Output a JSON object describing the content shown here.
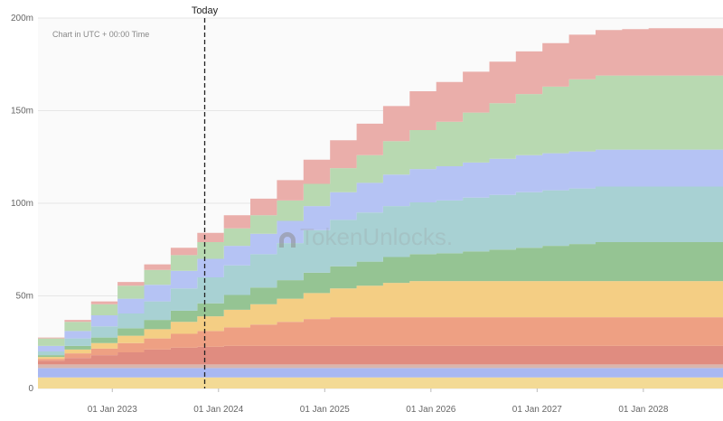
{
  "chart_data": {
    "type": "area",
    "stacked": true,
    "step": true,
    "annotation": "Chart in UTC + 00:00 Time",
    "watermark": "TokenUnlocks.",
    "today_label": "Today",
    "today_x": 2023.87,
    "xlim": [
      2022.3,
      2028.75
    ],
    "ylim": [
      0,
      200
    ],
    "x_ticks": [
      {
        "label": "01 Jan 2023",
        "value": 2023.0
      },
      {
        "label": "01 Jan 2024",
        "value": 2024.0
      },
      {
        "label": "01 Jan 2025",
        "value": 2025.0
      },
      {
        "label": "01 Jan 2026",
        "value": 2026.0
      },
      {
        "label": "01 Jan 2027",
        "value": 2027.0
      },
      {
        "label": "01 Jan 2028",
        "value": 2028.0
      }
    ],
    "y_ticks": [
      {
        "label": "0",
        "value": 0
      },
      {
        "label": "50m",
        "value": 50
      },
      {
        "label": "100m",
        "value": 100
      },
      {
        "label": "150m",
        "value": 150
      },
      {
        "label": "200m",
        "value": 200
      }
    ],
    "x": [
      2022.3,
      2022.55,
      2022.8,
      2023.05,
      2023.3,
      2023.55,
      2023.8,
      2024.05,
      2024.3,
      2024.55,
      2024.8,
      2025.05,
      2025.3,
      2025.55,
      2025.8,
      2026.05,
      2026.3,
      2026.55,
      2026.8,
      2027.05,
      2027.3,
      2027.55,
      2027.8,
      2028.05,
      2028.3,
      2028.55,
      2028.75
    ],
    "series": [
      {
        "color": "#f3da95",
        "values": [
          6,
          6,
          6,
          6,
          6,
          6,
          6,
          6,
          6,
          6,
          6,
          6,
          6,
          6,
          6,
          6,
          6,
          6,
          6,
          6,
          6,
          6,
          6,
          6,
          6,
          6,
          6
        ]
      },
      {
        "color": "#a9b8f2",
        "values": [
          5,
          5,
          5,
          5,
          5,
          5,
          5,
          5,
          5,
          5,
          5,
          5,
          5,
          5,
          5,
          5,
          5,
          5,
          5,
          5,
          5,
          5,
          5,
          5,
          5,
          5,
          5
        ]
      },
      {
        "color": "#d9b6ae",
        "values": [
          2,
          2,
          2,
          2,
          2,
          2,
          2,
          2,
          2,
          2,
          2,
          2,
          2,
          2,
          2,
          2,
          2,
          2,
          2,
          2,
          2,
          2,
          2,
          2,
          2,
          2,
          2
        ]
      },
      {
        "color": "#e08c80",
        "values": [
          2,
          3.5,
          5,
          6.5,
          8,
          9,
          9.5,
          10,
          10,
          10,
          10,
          10,
          10,
          10,
          10,
          10,
          10,
          10,
          10,
          10,
          10,
          10,
          10,
          10,
          10,
          10,
          10
        ]
      },
      {
        "color": "#eea083",
        "values": [
          1,
          2.5,
          3.5,
          5,
          6,
          7.5,
          8.5,
          10,
          11.5,
          13,
          14.5,
          15.5,
          15.5,
          15.5,
          15.5,
          15.5,
          15.5,
          15.5,
          15.5,
          15.5,
          15.5,
          15.5,
          15.5,
          15.5,
          15.5,
          15.5,
          15.5
        ]
      },
      {
        "color": "#f4ce84",
        "values": [
          1,
          2,
          3,
          4,
          5,
          6.5,
          8,
          9.5,
          11,
          12.5,
          14,
          15.5,
          17,
          18.5,
          19.5,
          19.5,
          19.5,
          19.5,
          19.5,
          19.5,
          19.5,
          19.5,
          19.5,
          19.5,
          19.5,
          19.5,
          19.5
        ]
      },
      {
        "color": "#95c493",
        "values": [
          1,
          2,
          3,
          4,
          5,
          6,
          7,
          8,
          9,
          10,
          11,
          12,
          13,
          14,
          14.5,
          15,
          16,
          17,
          18,
          19,
          20,
          21,
          21,
          21,
          21,
          21,
          21
        ]
      },
      {
        "color": "#a8d1d3",
        "values": [
          2,
          4,
          6,
          8,
          10,
          12,
          14,
          16,
          18,
          20,
          23,
          25,
          26.5,
          27.5,
          28,
          28.5,
          29,
          29.5,
          30,
          30,
          30,
          30,
          30,
          30,
          30,
          30,
          30
        ]
      },
      {
        "color": "#b5c3f4",
        "values": [
          3,
          4,
          6,
          8,
          9,
          9.5,
          10,
          10.5,
          11,
          12,
          13,
          15,
          16,
          17,
          18,
          18.5,
          19,
          19.5,
          20,
          20,
          20,
          20,
          20,
          20,
          20,
          20,
          20
        ]
      },
      {
        "color": "#b8d9b1",
        "values": [
          4,
          5,
          6,
          7,
          8,
          8.5,
          9,
          9.5,
          10,
          11,
          12,
          13,
          15,
          18,
          21,
          24,
          27,
          30,
          33,
          36,
          39,
          40,
          40,
          40,
          40,
          40,
          40
        ]
      },
      {
        "color": "#eaaeaa",
        "values": [
          0.5,
          1,
          1.5,
          2,
          3,
          4,
          5,
          7,
          9,
          11,
          13,
          15,
          17,
          19,
          21,
          21.5,
          22,
          22.5,
          23,
          23.5,
          24,
          24.5,
          25,
          25.5,
          25.5,
          25.5,
          25.5
        ]
      }
    ]
  }
}
